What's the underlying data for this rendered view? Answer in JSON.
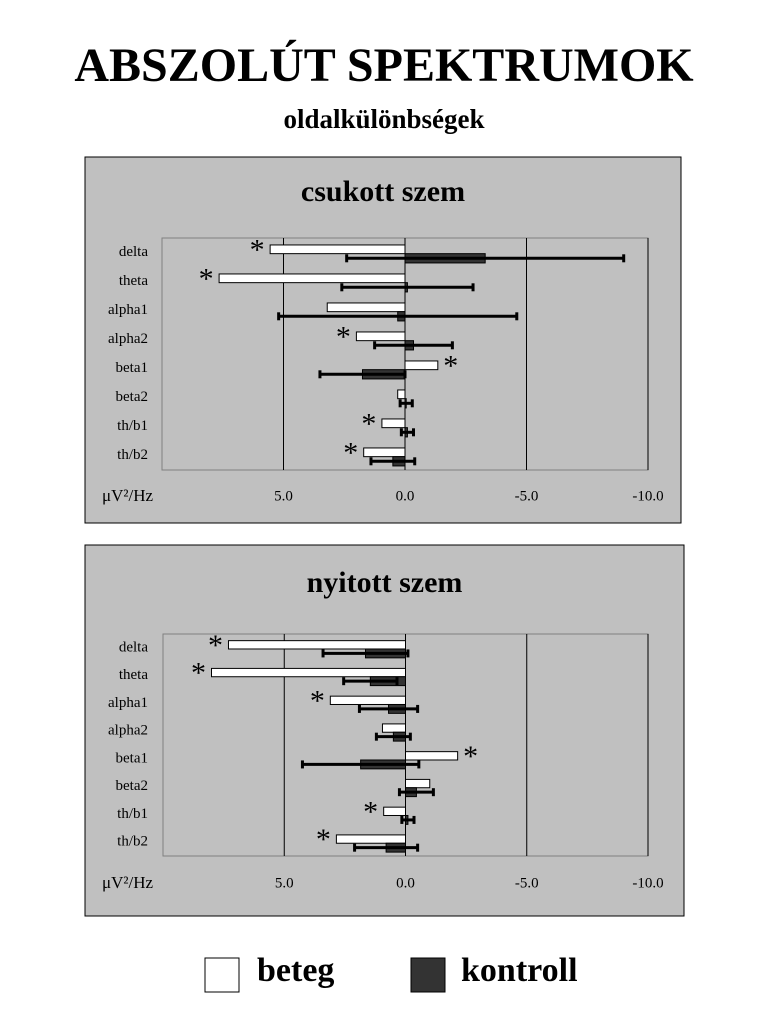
{
  "title": "ABSZOLÚT SPEKTRUMOK",
  "subtitle": "oldalkülönbségek",
  "chart_data": [
    {
      "type": "bar",
      "orientation": "horizontal",
      "title": "csukott szem",
      "categories": [
        "delta",
        "theta",
        "alpha1",
        "alpha2",
        "beta1",
        "beta2",
        "th/b1",
        "th/b2"
      ],
      "xlabel": "μV²/Hz",
      "xlim": [
        10,
        -10
      ],
      "xticks": [
        {
          "value": 5,
          "label": "5.0"
        },
        {
          "value": 0,
          "label": "0.0"
        },
        {
          "value": -5,
          "label": "-5.0"
        },
        {
          "value": -10,
          "label": "-10.0"
        }
      ],
      "grid": true,
      "series": [
        {
          "name": "beteg",
          "color": "#ffffff",
          "values": [
            5.55,
            7.65,
            3.2,
            2.0,
            -1.35,
            0.3,
            0.95,
            1.7
          ],
          "markers": [
            "*",
            "*",
            null,
            "*",
            "*",
            null,
            "*",
            "*"
          ]
        },
        {
          "name": "kontroll",
          "color": "#333333",
          "values": [
            -3.3,
            -0.1,
            0.3,
            -0.35,
            1.75,
            -0.05,
            -0.1,
            0.5
          ],
          "errors": [
            5.7,
            2.7,
            4.9,
            1.6,
            1.75,
            0.25,
            0.25,
            0.9
          ]
        }
      ]
    },
    {
      "type": "bar",
      "orientation": "horizontal",
      "title": "nyitott szem",
      "categories": [
        "delta",
        "theta",
        "alpha1",
        "alpha2",
        "beta1",
        "beta2",
        "th/b1",
        "th/b2"
      ],
      "xlabel": "μV²/Hz",
      "xlim": [
        10,
        -10
      ],
      "xticks": [
        {
          "value": 5,
          "label": "5.0"
        },
        {
          "value": 0,
          "label": "0.0"
        },
        {
          "value": -5,
          "label": "-5.0"
        },
        {
          "value": -10,
          "label": "-10.0"
        }
      ],
      "grid": true,
      "series": [
        {
          "color": "#ffffff",
          "values": [
            7.3,
            8.0,
            3.1,
            0.95,
            -2.15,
            -1.0,
            0.9,
            2.85
          ],
          "markers": [
            "*",
            "*",
            "*",
            null,
            "*",
            null,
            "*",
            "*"
          ]
        },
        {
          "color": "#333333",
          "values": [
            1.65,
            1.45,
            0.7,
            0.5,
            1.85,
            -0.45,
            -0.1,
            0.8
          ],
          "errors": [
            1.75,
            1.1,
            1.2,
            0.7,
            2.4,
            0.7,
            0.25,
            1.3
          ]
        }
      ]
    }
  ]
}
